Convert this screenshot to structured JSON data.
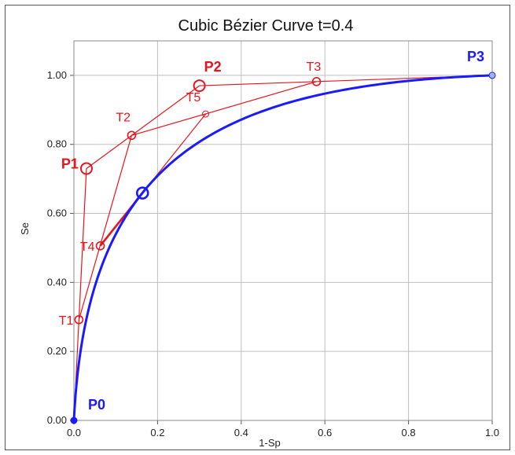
{
  "chart_data": {
    "type": "line",
    "title": "Cubic Bézier Curve t=0.4",
    "xlabel": "1-Sp",
    "ylabel": "Se",
    "xlim": [
      0,
      1
    ],
    "ylim": [
      0,
      1.1
    ],
    "x_ticks": [
      "0.0",
      "0.2",
      "0.4",
      "0.6",
      "0.8",
      "1.0"
    ],
    "x_tick_values": [
      0,
      0.2,
      0.4,
      0.6,
      0.8,
      1.0
    ],
    "y_ticks": [
      "0.00",
      "0.20",
      "0.40",
      "0.60",
      "0.80",
      "1.00"
    ],
    "y_tick_values": [
      0,
      0.2,
      0.4,
      0.6,
      0.8,
      1.0
    ],
    "grid": true,
    "t": 0.4,
    "control_points": [
      {
        "name": "P0",
        "x": 0.0,
        "y": 0.0,
        "color": "#1a1aff"
      },
      {
        "name": "P1",
        "x": 0.03,
        "y": 0.73,
        "color": "#e8141c"
      },
      {
        "name": "P2",
        "x": 0.3,
        "y": 0.97,
        "color": "#e8141c"
      },
      {
        "name": "P3",
        "x": 1.0,
        "y": 1.0,
        "color": "#1a1aff"
      }
    ],
    "construction_points": [
      {
        "name": "T1",
        "x": 0.012,
        "y": 0.292
      },
      {
        "name": "T2",
        "x": 0.138,
        "y": 0.826
      },
      {
        "name": "T3",
        "x": 0.58,
        "y": 0.982
      },
      {
        "name": "T4",
        "x": 0.063,
        "y": 0.506
      },
      {
        "name": "T5",
        "x": 0.315,
        "y": 0.888
      }
    ],
    "curve_point": {
      "x": 0.164,
      "y": 0.659
    },
    "series": [
      {
        "values": "bezier",
        "color": "#1a1aff"
      }
    ],
    "colors": {
      "curve": "#1a1aff",
      "construction": "#e8141c",
      "grid": "#bfbfbf"
    }
  }
}
